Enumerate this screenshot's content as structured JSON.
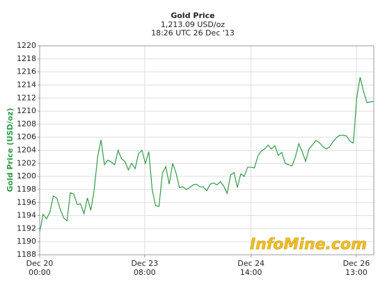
{
  "chart_data": {
    "type": "line",
    "title": "Gold Price",
    "subtitle": "1,213.09 USD/oz",
    "timestamp": "18:26 UTC 26 Dec '13",
    "y_label": "Gold Price (USD/oz)",
    "watermark": "InfoMine.com",
    "color": "#2e9a45",
    "grid": true,
    "xlim": [
      0,
      98
    ],
    "xticks": [
      {
        "value": 0,
        "label": "Dec 20\n00:00"
      },
      {
        "value": 30.8,
        "label": "Dec 23\n08:00"
      },
      {
        "value": 62,
        "label": "Dec 24\n14:00"
      },
      {
        "value": 92.9,
        "label": "Dec 26\n13:00"
      }
    ],
    "ylim": [
      1188,
      1220
    ],
    "yticks": [
      1188,
      1190,
      1192,
      1194,
      1196,
      1198,
      1200,
      1202,
      1204,
      1206,
      1208,
      1210,
      1212,
      1214,
      1216,
      1218,
      1220
    ],
    "values": [
      1191.5,
      1194.2,
      1193.5,
      1194.5,
      1197,
      1196.7,
      1195,
      1193.7,
      1193.2,
      1197.5,
      1197.3,
      1195.7,
      1195.8,
      1194.3,
      1196.7,
      1194.8,
      1198,
      1203,
      1205.6,
      1201.8,
      1202.5,
      1202.2,
      1201.8,
      1204,
      1202.7,
      1202.3,
      1201,
      1202,
      1201.2,
      1203.5,
      1204,
      1202,
      1203.8,
      1198,
      1195.5,
      1195.4,
      1200.5,
      1201.5,
      1198.8,
      1202,
      1200.5,
      1198.3,
      1198.4,
      1198,
      1198.3,
      1198.7,
      1198.8,
      1198.4,
      1198.4,
      1197.8,
      1198.8,
      1199,
      1198.7,
      1199.2,
      1198.5,
      1197.4,
      1200.2,
      1200.6,
      1198.3,
      1200.4,
      1200,
      1201.4,
      1201.4,
      1201.3,
      1203.1,
      1203.9,
      1204.2,
      1204.8,
      1204.2,
      1204.7,
      1203.2,
      1203.7,
      1202,
      1201.8,
      1201.6,
      1203,
      1205,
      1203.8,
      1202.3,
      1204.2,
      1204.8,
      1205.5,
      1205.2,
      1204.6,
      1204.2,
      1204.5,
      1205.3,
      1205.9,
      1206.3,
      1206.3,
      1206.2,
      1205.4,
      1205.1,
      1212,
      1215.2,
      1213,
      1211.3,
      1211.4,
      1211.5
    ]
  }
}
